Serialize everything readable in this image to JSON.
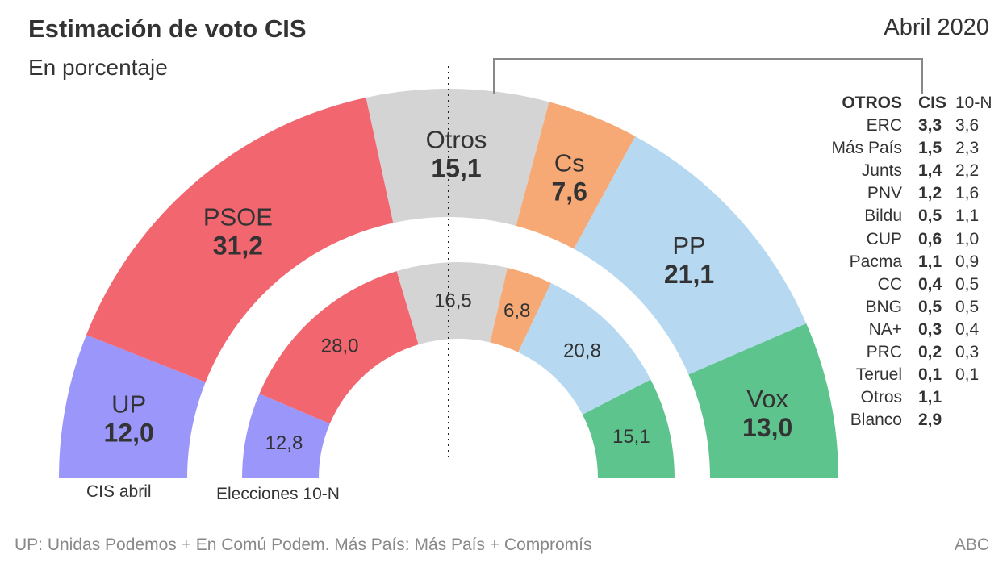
{
  "header": {
    "title": "Estimación de voto CIS",
    "subtitle": "En porcentaje",
    "date": "Abril 2020"
  },
  "footer": {
    "note": "UP: Unidas Podemos + En Comú Podem. Más País: Más País + Compromís",
    "source": "ABC"
  },
  "chart_data": {
    "type": "pie",
    "subtype": "semicircle-donut",
    "rings": [
      {
        "name": "CIS abril",
        "series": [
          {
            "label": "UP",
            "value": 12.0,
            "display": "12,0",
            "color": "#9b97fa"
          },
          {
            "label": "PSOE",
            "value": 31.2,
            "display": "31,2",
            "color": "#f26670"
          },
          {
            "label": "Otros",
            "value": 15.1,
            "display": "15,1",
            "color": "#d4d4d4"
          },
          {
            "label": "Cs",
            "value": 7.6,
            "display": "7,6",
            "color": "#f6a975"
          },
          {
            "label": "PP",
            "value": 21.1,
            "display": "21,1",
            "color": "#b6d9f1"
          },
          {
            "label": "Vox",
            "value": 13.0,
            "display": "13,0",
            "color": "#5dc48d"
          }
        ]
      },
      {
        "name": "Elecciones 10-N",
        "series": [
          {
            "label": "UP",
            "value": 12.8,
            "display": "12,8",
            "color": "#9b97fa"
          },
          {
            "label": "PSOE",
            "value": 28.0,
            "display": "28,0",
            "color": "#f26670"
          },
          {
            "label": "Otros",
            "value": 16.5,
            "display": "16,5",
            "color": "#d4d4d4"
          },
          {
            "label": "Cs",
            "value": 6.8,
            "display": "6,8",
            "color": "#f6a975"
          },
          {
            "label": "PP",
            "value": 20.8,
            "display": "20,8",
            "color": "#b6d9f1"
          },
          {
            "label": "Vox",
            "value": 15.1,
            "display": "15,1",
            "color": "#5dc48d"
          }
        ]
      }
    ],
    "majority_line": "50%"
  },
  "otros_table": {
    "headers": [
      "OTROS",
      "CIS",
      "10-N"
    ],
    "rows": [
      [
        "ERC",
        "3,3",
        "3,6"
      ],
      [
        "Más País",
        "1,5",
        "2,3"
      ],
      [
        "Junts",
        "1,4",
        "2,2"
      ],
      [
        "PNV",
        "1,2",
        "1,6"
      ],
      [
        "Bildu",
        "0,5",
        "1,1"
      ],
      [
        "CUP",
        "0,6",
        "1,0"
      ],
      [
        "Pacma",
        "1,1",
        "0,9"
      ],
      [
        "CC",
        "0,4",
        "0,5"
      ],
      [
        "BNG",
        "0,5",
        "0,5"
      ],
      [
        "NA+",
        "0,3",
        "0,4"
      ],
      [
        "PRC",
        "0,2",
        "0,3"
      ],
      [
        "Teruel",
        "0,1",
        "0,1"
      ],
      [
        "Otros",
        "1,1",
        ""
      ],
      [
        "Blanco",
        "2,9",
        ""
      ]
    ]
  }
}
